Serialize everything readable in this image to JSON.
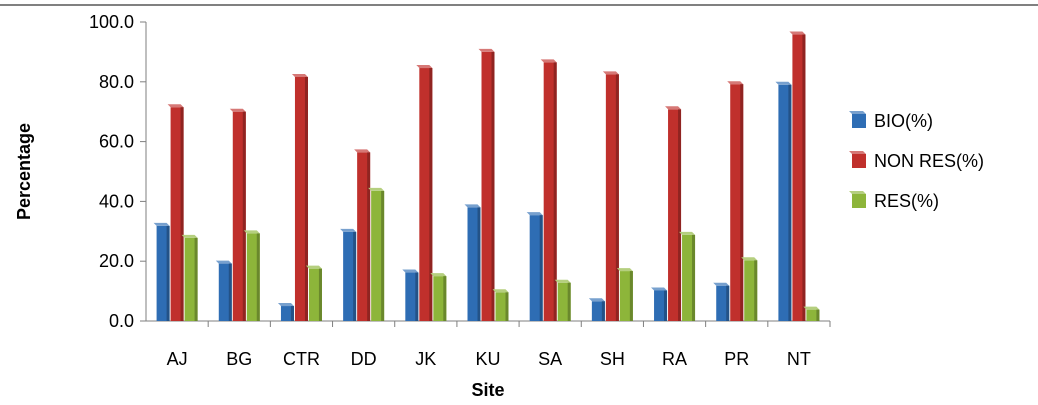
{
  "chart_data": {
    "type": "bar",
    "title": "",
    "xlabel": "Site",
    "ylabel": "Percentage",
    "ylim": [
      0,
      100
    ],
    "yticks": [
      "0.0",
      "20.0",
      "40.0",
      "60.0",
      "80.0",
      "100.0"
    ],
    "grid": false,
    "legend_position": "right",
    "categories": [
      "AJ",
      "BG",
      "CTR",
      "DD",
      "JK",
      "KU",
      "SA",
      "SH",
      "RA",
      "PR",
      "NT"
    ],
    "series": [
      {
        "name": "BIO(%)",
        "color": "#2E6DB4",
        "values": [
          31.8,
          19.2,
          5.0,
          29.8,
          16.2,
          38.0,
          35.4,
          6.6,
          10.2,
          11.8,
          79.0
        ]
      },
      {
        "name": "NON RES(%)",
        "color": "#C0302C",
        "values": [
          71.5,
          70.0,
          81.6,
          56.4,
          84.6,
          90.0,
          86.5,
          82.5,
          70.8,
          79.2,
          95.8
        ]
      },
      {
        "name": "RES(%)",
        "color": "#8DB53A",
        "values": [
          27.8,
          29.3,
          17.5,
          43.5,
          15.0,
          9.6,
          12.8,
          16.7,
          28.8,
          20.3,
          3.8
        ]
      }
    ]
  }
}
